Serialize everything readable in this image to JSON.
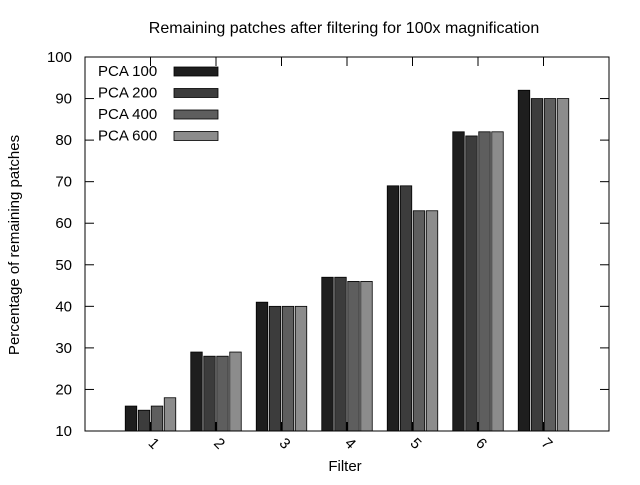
{
  "chart_data": {
    "type": "bar",
    "title": "Remaining patches after filtering for 100x magnification",
    "xlabel": "Filter",
    "ylabel": "Percentage of remaining patches",
    "categories": [
      "1",
      "2",
      "3",
      "4",
      "5",
      "6",
      "7"
    ],
    "ylim": [
      10,
      100
    ],
    "yticks": [
      10,
      20,
      30,
      40,
      50,
      60,
      70,
      80,
      90,
      100
    ],
    "legend_position": "top-left",
    "grid": false,
    "series": [
      {
        "name": "PCA 100",
        "color": "#1e1e1e",
        "values": [
          16,
          29,
          41,
          47,
          69,
          82,
          92
        ]
      },
      {
        "name": "PCA 200",
        "color": "#3c3c3c",
        "values": [
          15,
          28,
          40,
          47,
          69,
          81,
          90
        ]
      },
      {
        "name": "PCA 400",
        "color": "#5e5e5e",
        "values": [
          16,
          28,
          40,
          46,
          63,
          82,
          90
        ]
      },
      {
        "name": "PCA 600",
        "color": "#8c8c8c",
        "values": [
          18,
          29,
          40,
          46,
          63,
          82,
          90
        ]
      }
    ]
  }
}
